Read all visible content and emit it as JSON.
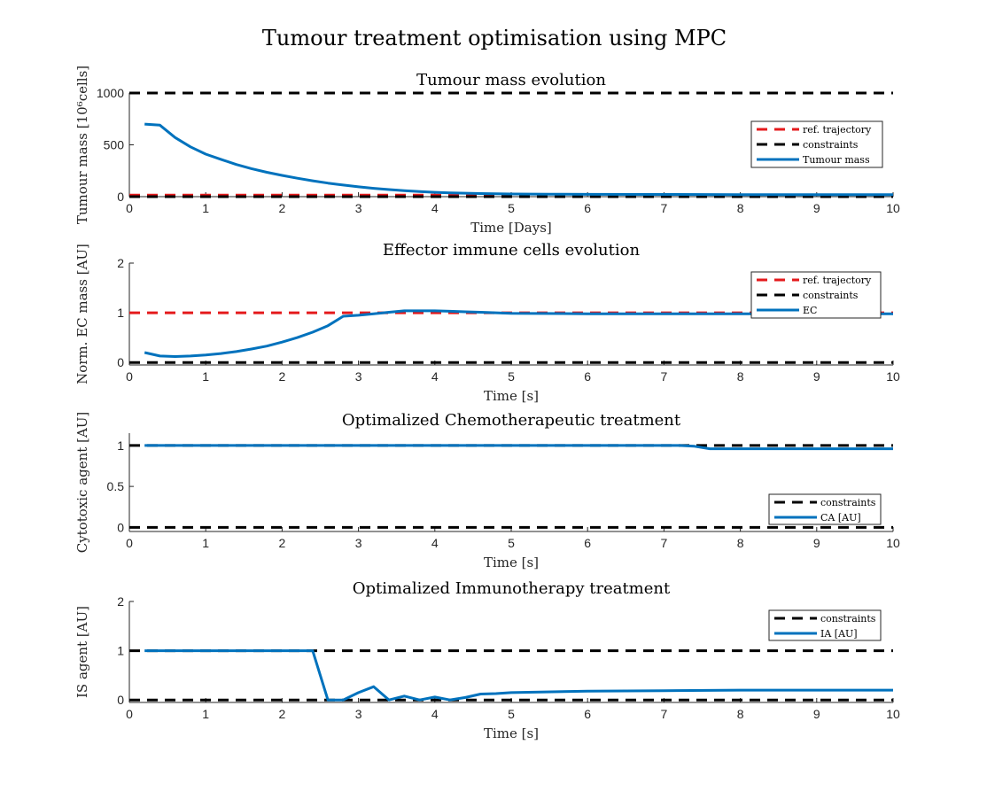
{
  "figure_title": "Tumour treatment optimisation using MPC",
  "colors": {
    "ref": "#e41a1c",
    "constraint": "#000000",
    "series": "#0072bd",
    "axis": "#262626"
  },
  "chart_data": [
    {
      "type": "line",
      "title": "Tumour mass evolution",
      "xlabel": "Time [Days]",
      "ylabel": "Tumour mass [10⁶cells]",
      "xlim": [
        0,
        10
      ],
      "ylim": [
        0,
        1000
      ],
      "xticks": [
        0,
        1,
        2,
        3,
        4,
        5,
        6,
        7,
        8,
        9,
        10
      ],
      "yticks": [
        0,
        500,
        1000
      ],
      "legend": {
        "position": "right",
        "entries": [
          "ref. trajectory",
          "constraints",
          "Tumour mass"
        ]
      },
      "series": [
        {
          "name": "ref. trajectory",
          "style": "dashed",
          "color": "#e41a1c",
          "x": [
            0,
            10
          ],
          "y": [
            15,
            15
          ]
        },
        {
          "name": "constraints",
          "style": "dashed",
          "color": "#000000",
          "x": [
            0,
            10
          ],
          "y": [
            1000,
            1000
          ]
        },
        {
          "name": "constraints",
          "style": "dashed",
          "color": "#000000",
          "x": [
            0,
            10
          ],
          "y": [
            0,
            0
          ],
          "in_legend": false
        },
        {
          "name": "Tumour mass",
          "style": "solid",
          "color": "#0072bd",
          "x": [
            0.2,
            0.4,
            0.6,
            0.8,
            1.0,
            1.2,
            1.4,
            1.6,
            1.8,
            2.0,
            2.2,
            2.4,
            2.6,
            2.8,
            3.0,
            3.2,
            3.4,
            3.6,
            3.8,
            4.0,
            4.2,
            4.4,
            4.6,
            4.8,
            5.0,
            5.5,
            6.0,
            7.0,
            8.0,
            9.0,
            10.0
          ],
          "y": [
            700,
            690,
            570,
            480,
            410,
            360,
            310,
            270,
            235,
            205,
            178,
            153,
            131,
            112,
            95,
            80,
            68,
            58,
            49,
            42,
            37,
            33,
            30,
            28,
            26,
            24,
            22,
            21,
            20,
            20,
            20
          ]
        }
      ]
    },
    {
      "type": "line",
      "title": "Effector immune cells evolution",
      "xlabel": "Time [s]",
      "ylabel": "Norm. EC mass [AU]",
      "xlim": [
        0,
        10
      ],
      "ylim": [
        -0.05,
        2
      ],
      "xticks": [
        0,
        1,
        2,
        3,
        4,
        5,
        6,
        7,
        8,
        9,
        10
      ],
      "yticks": [
        0,
        1,
        2
      ],
      "legend": {
        "position": "right",
        "entries": [
          "ref. trajectory",
          "constraints",
          "EC"
        ]
      },
      "series": [
        {
          "name": "ref. trajectory",
          "style": "dashed",
          "color": "#e41a1c",
          "x": [
            0,
            10
          ],
          "y": [
            1,
            1
          ]
        },
        {
          "name": "constraints",
          "style": "dashed",
          "color": "#000000",
          "x": [
            0,
            10
          ],
          "y": [
            0,
            0
          ]
        },
        {
          "name": "EC",
          "style": "solid",
          "color": "#0072bd",
          "x": [
            0.2,
            0.4,
            0.6,
            0.8,
            1.0,
            1.2,
            1.4,
            1.6,
            1.8,
            2.0,
            2.2,
            2.4,
            2.6,
            2.8,
            3.0,
            3.2,
            3.4,
            3.6,
            3.8,
            4.0,
            4.2,
            4.4,
            4.6,
            4.8,
            5.0,
            6.0,
            7.0,
            8.0,
            9.0,
            10.0
          ],
          "y": [
            0.2,
            0.13,
            0.12,
            0.13,
            0.15,
            0.18,
            0.22,
            0.27,
            0.33,
            0.41,
            0.5,
            0.61,
            0.74,
            0.93,
            0.95,
            0.98,
            1.01,
            1.04,
            1.04,
            1.04,
            1.03,
            1.02,
            1.01,
            1.0,
            0.99,
            0.98,
            0.98,
            0.98,
            0.98,
            0.98
          ]
        }
      ]
    },
    {
      "type": "line",
      "title": "Optimalized Chemotherapeutic treatment",
      "xlabel": "Time [s]",
      "ylabel": "Cytotoxic agent [AU]",
      "xlim": [
        0,
        10
      ],
      "ylim": [
        -0.05,
        1.15
      ],
      "xticks": [
        0,
        1,
        2,
        3,
        4,
        5,
        6,
        7,
        8,
        9,
        10
      ],
      "yticks": [
        0,
        0.5,
        1
      ],
      "legend": {
        "position": "bottom-right",
        "entries": [
          "constraints",
          "CA [AU]"
        ]
      },
      "series": [
        {
          "name": "constraints",
          "style": "dashed",
          "color": "#000000",
          "x": [
            0,
            10
          ],
          "y": [
            1,
            1
          ]
        },
        {
          "name": "constraints",
          "style": "dashed",
          "color": "#000000",
          "x": [
            0,
            10
          ],
          "y": [
            0,
            0
          ],
          "in_legend": false
        },
        {
          "name": "CA [AU]",
          "style": "solid",
          "color": "#0072bd",
          "x": [
            0.2,
            7.2,
            7.4,
            7.6,
            7.8,
            8.0,
            9.0,
            10.0
          ],
          "y": [
            1,
            1,
            0.99,
            0.96,
            0.96,
            0.96,
            0.96,
            0.96
          ]
        }
      ]
    },
    {
      "type": "line",
      "title": "Optimalized Immunotherapy treatment",
      "xlabel": "Time [s]",
      "ylabel": "IS agent [AU]",
      "xlim": [
        0,
        10
      ],
      "ylim": [
        -0.05,
        2
      ],
      "xticks": [
        0,
        1,
        2,
        3,
        4,
        5,
        6,
        7,
        8,
        9,
        10
      ],
      "yticks": [
        0,
        1,
        2
      ],
      "legend": {
        "position": "top-right",
        "entries": [
          "constraints",
          "IA [AU]"
        ]
      },
      "series": [
        {
          "name": "constraints",
          "style": "dashed",
          "color": "#000000",
          "x": [
            0,
            10
          ],
          "y": [
            1,
            1
          ]
        },
        {
          "name": "constraints",
          "style": "dashed",
          "color": "#000000",
          "x": [
            0,
            10
          ],
          "y": [
            0,
            0
          ],
          "in_legend": false
        },
        {
          "name": "IA [AU]",
          "style": "solid",
          "color": "#0072bd",
          "x": [
            0.2,
            2.4,
            2.6,
            2.8,
            3.0,
            3.2,
            3.4,
            3.6,
            3.8,
            4.0,
            4.2,
            4.4,
            4.6,
            4.8,
            5.0,
            6.0,
            7.0,
            8.0,
            9.0,
            10.0
          ],
          "y": [
            1,
            1,
            0,
            0,
            0.15,
            0.27,
            0,
            0.08,
            0,
            0.06,
            0,
            0.05,
            0.12,
            0.13,
            0.15,
            0.18,
            0.19,
            0.2,
            0.2,
            0.2
          ]
        }
      ]
    }
  ]
}
